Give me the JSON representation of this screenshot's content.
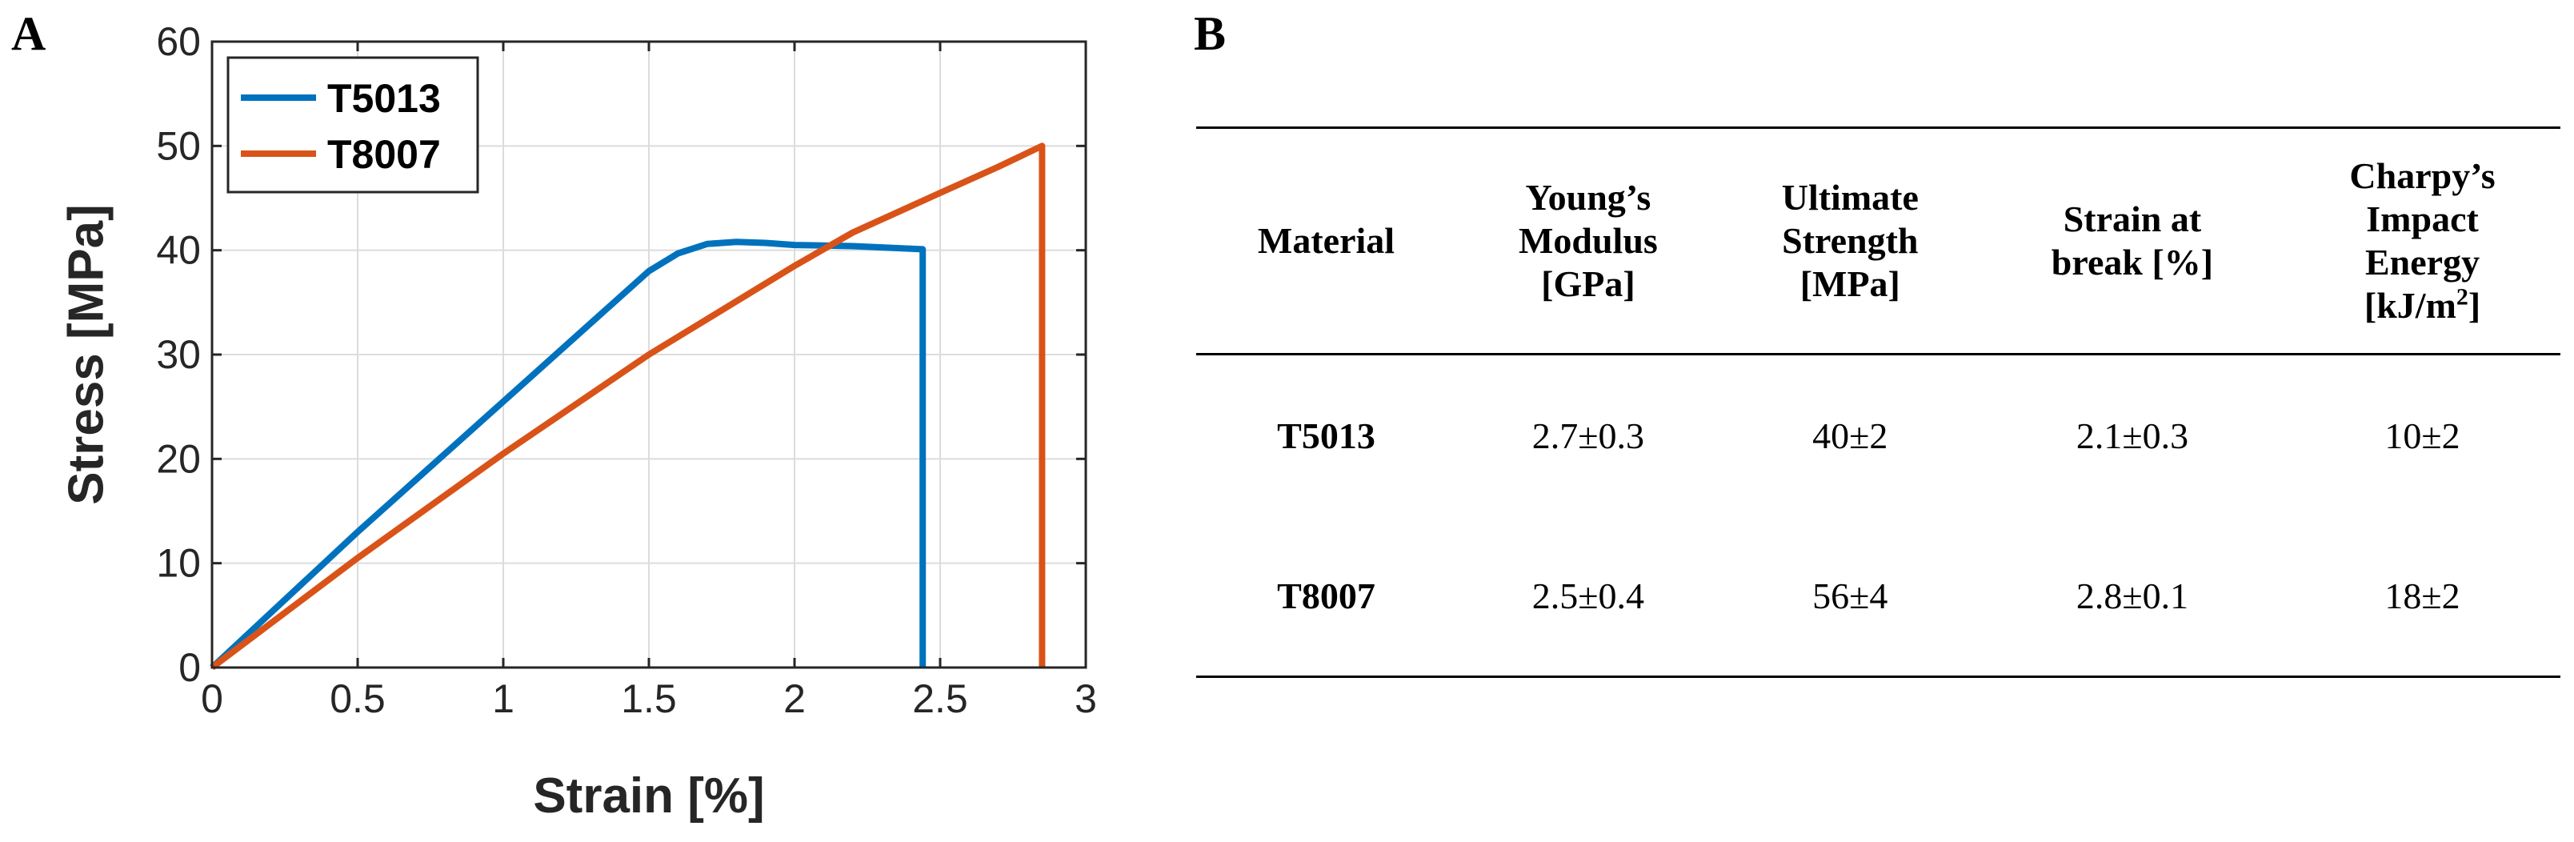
{
  "panel_a": {
    "letter": "A"
  },
  "panel_b": {
    "letter": "B"
  },
  "chart_data": {
    "type": "line",
    "xlabel": "Strain [%]",
    "ylabel": "Stress [MPa]",
    "xlim": [
      0,
      3
    ],
    "ylim": [
      0,
      60
    ],
    "xticks": [
      0,
      0.5,
      1,
      1.5,
      2,
      2.5,
      3
    ],
    "xtick_labels": [
      "0",
      "0.5",
      "1",
      "1.5",
      "2",
      "2.5",
      "3"
    ],
    "yticks": [
      0,
      10,
      20,
      30,
      40,
      50,
      60
    ],
    "ytick_labels": [
      "0",
      "10",
      "20",
      "30",
      "40",
      "50",
      "60"
    ],
    "grid": true,
    "legend_placement": "top-left",
    "series": [
      {
        "name": "T5013",
        "color": "#0072BD",
        "x": [
          0,
          0.5,
          1.0,
          1.3,
          1.5,
          1.6,
          1.7,
          1.8,
          1.9,
          2.0,
          2.2,
          2.44,
          2.44
        ],
        "y": [
          0,
          13,
          25.5,
          33,
          38,
          39.7,
          40.6,
          40.8,
          40.7,
          40.5,
          40.4,
          40.1,
          0
        ]
      },
      {
        "name": "T8007",
        "color": "#D95319",
        "x": [
          0,
          0.5,
          1.0,
          1.5,
          2.0,
          2.2,
          2.5,
          2.7,
          2.85,
          2.85
        ],
        "y": [
          0,
          10.5,
          20.5,
          30,
          38.5,
          41.7,
          45.5,
          48,
          50,
          0
        ]
      }
    ]
  },
  "table": {
    "headers": [
      [
        "Material"
      ],
      [
        "Young’s",
        "Modulus",
        "[GPa]"
      ],
      [
        "Ultimate",
        "Strength",
        "[MPa]"
      ],
      [
        "Strain at",
        "break [%]"
      ],
      [
        "Charpy’s",
        "Impact",
        "Energy",
        "[kJ/m",
        "]"
      ]
    ],
    "header_superscript": "2",
    "rows": [
      [
        "T5013",
        "2.7±0.3",
        "40±2",
        "2.1±0.3",
        "10±2"
      ],
      [
        "T8007",
        "2.5±0.4",
        "56±4",
        "2.8±0.1",
        "18±2"
      ]
    ]
  }
}
